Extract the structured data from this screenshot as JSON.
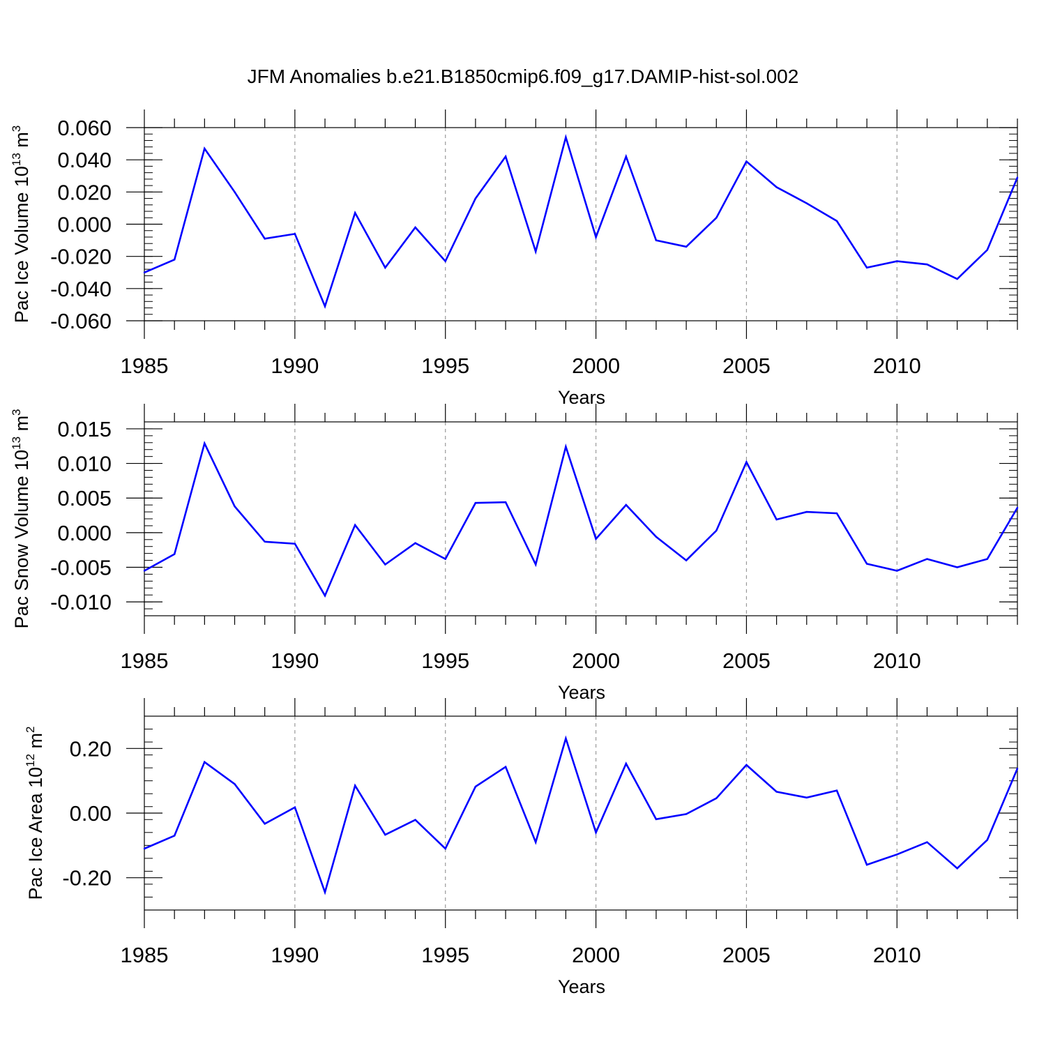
{
  "title": "JFM Anomalies b.e21.B1850cmip6.f09_g17.DAMIP-hist-sol.002",
  "line_color": "#0000ff",
  "chart_data": [
    {
      "type": "line",
      "ylabel": "Pac Ice Volume 10",
      "ylabel_exp": "13",
      "ylabel_unit": " m",
      "ylabel_unit_exp": "3",
      "xlabel": "Years",
      "xlim": [
        1985,
        2014
      ],
      "ylim": [
        -0.06,
        0.06
      ],
      "yticks": [
        -0.06,
        -0.04,
        -0.02,
        0.0,
        0.02,
        0.04,
        0.06
      ],
      "ytick_labels": [
        "-0.060",
        "-0.040",
        "-0.020",
        "0.000",
        "0.020",
        "0.040",
        "0.060"
      ],
      "xticks": [
        1985,
        1990,
        1995,
        2000,
        2005,
        2010
      ],
      "xtick_labels": [
        "1985",
        "1990",
        "1995",
        "2000",
        "2005",
        "2010"
      ],
      "x": [
        1985,
        1986,
        1987,
        1988,
        1989,
        1990,
        1991,
        1992,
        1993,
        1994,
        1995,
        1996,
        1997,
        1998,
        1999,
        2000,
        2001,
        2002,
        2003,
        2004,
        2005,
        2006,
        2007,
        2008,
        2009,
        2010,
        2011,
        2012,
        2013,
        2014
      ],
      "values": [
        -0.03,
        -0.022,
        0.047,
        0.02,
        -0.009,
        -0.006,
        -0.051,
        0.007,
        -0.027,
        -0.002,
        -0.023,
        0.016,
        0.042,
        -0.017,
        0.054,
        -0.008,
        0.042,
        -0.01,
        -0.014,
        0.004,
        0.039,
        0.023,
        0.013,
        0.002,
        -0.027,
        -0.023,
        -0.025,
        -0.034,
        -0.016,
        0.029
      ]
    },
    {
      "type": "line",
      "ylabel": "Pac Snow Volume 10",
      "ylabel_exp": "13",
      "ylabel_unit": " m",
      "ylabel_unit_exp": "3",
      "xlabel": "Years",
      "xlim": [
        1985,
        2014
      ],
      "ylim": [
        -0.012,
        0.016
      ],
      "yticks": [
        -0.01,
        -0.005,
        0.0,
        0.005,
        0.01,
        0.015
      ],
      "ytick_labels": [
        "-0.010",
        "-0.005",
        "0.000",
        "0.005",
        "0.010",
        "0.015"
      ],
      "xticks": [
        1985,
        1990,
        1995,
        2000,
        2005,
        2010
      ],
      "xtick_labels": [
        "1985",
        "1990",
        "1995",
        "2000",
        "2005",
        "2010"
      ],
      "x": [
        1985,
        1986,
        1987,
        1988,
        1989,
        1990,
        1991,
        1992,
        1993,
        1994,
        1995,
        1996,
        1997,
        1998,
        1999,
        2000,
        2001,
        2002,
        2003,
        2004,
        2005,
        2006,
        2007,
        2008,
        2009,
        2010,
        2011,
        2012,
        2013,
        2014
      ],
      "values": [
        -0.0055,
        -0.0031,
        0.0129,
        0.0038,
        -0.0013,
        -0.0016,
        -0.0091,
        0.0011,
        -0.0046,
        -0.0015,
        -0.0038,
        0.0043,
        0.0044,
        -0.0046,
        0.0124,
        -0.0009,
        0.004,
        -0.0006,
        -0.004,
        0.0003,
        0.0102,
        0.0019,
        0.003,
        0.0028,
        -0.0045,
        -0.0055,
        -0.0038,
        -0.005,
        -0.0038,
        0.0036
      ]
    },
    {
      "type": "line",
      "ylabel": "Pac Ice Area 10",
      "ylabel_exp": "12",
      "ylabel_unit": " m",
      "ylabel_unit_exp": "2",
      "xlabel": "Years",
      "xlim": [
        1985,
        2014
      ],
      "ylim": [
        -0.3,
        0.3
      ],
      "yticks": [
        -0.2,
        0.0,
        0.2
      ],
      "ytick_labels": [
        "-0.20",
        "0.00",
        "0.20"
      ],
      "xticks": [
        1985,
        1990,
        1995,
        2000,
        2005,
        2010
      ],
      "xtick_labels": [
        "1985",
        "1990",
        "1995",
        "2000",
        "2005",
        "2010"
      ],
      "x": [
        1985,
        1986,
        1987,
        1988,
        1989,
        1990,
        1991,
        1992,
        1993,
        1994,
        1995,
        1996,
        1997,
        1998,
        1999,
        2000,
        2001,
        2002,
        2003,
        2004,
        2005,
        2006,
        2007,
        2008,
        2009,
        2010,
        2011,
        2012,
        2013,
        2014
      ],
      "values": [
        -0.11,
        -0.07,
        0.158,
        0.09,
        -0.033,
        0.018,
        -0.245,
        0.085,
        -0.067,
        -0.021,
        -0.11,
        0.082,
        0.143,
        -0.09,
        0.231,
        -0.06,
        0.153,
        -0.019,
        -0.003,
        0.046,
        0.149,
        0.066,
        0.048,
        0.07,
        -0.16,
        -0.128,
        -0.09,
        -0.171,
        -0.083,
        0.138
      ]
    }
  ]
}
